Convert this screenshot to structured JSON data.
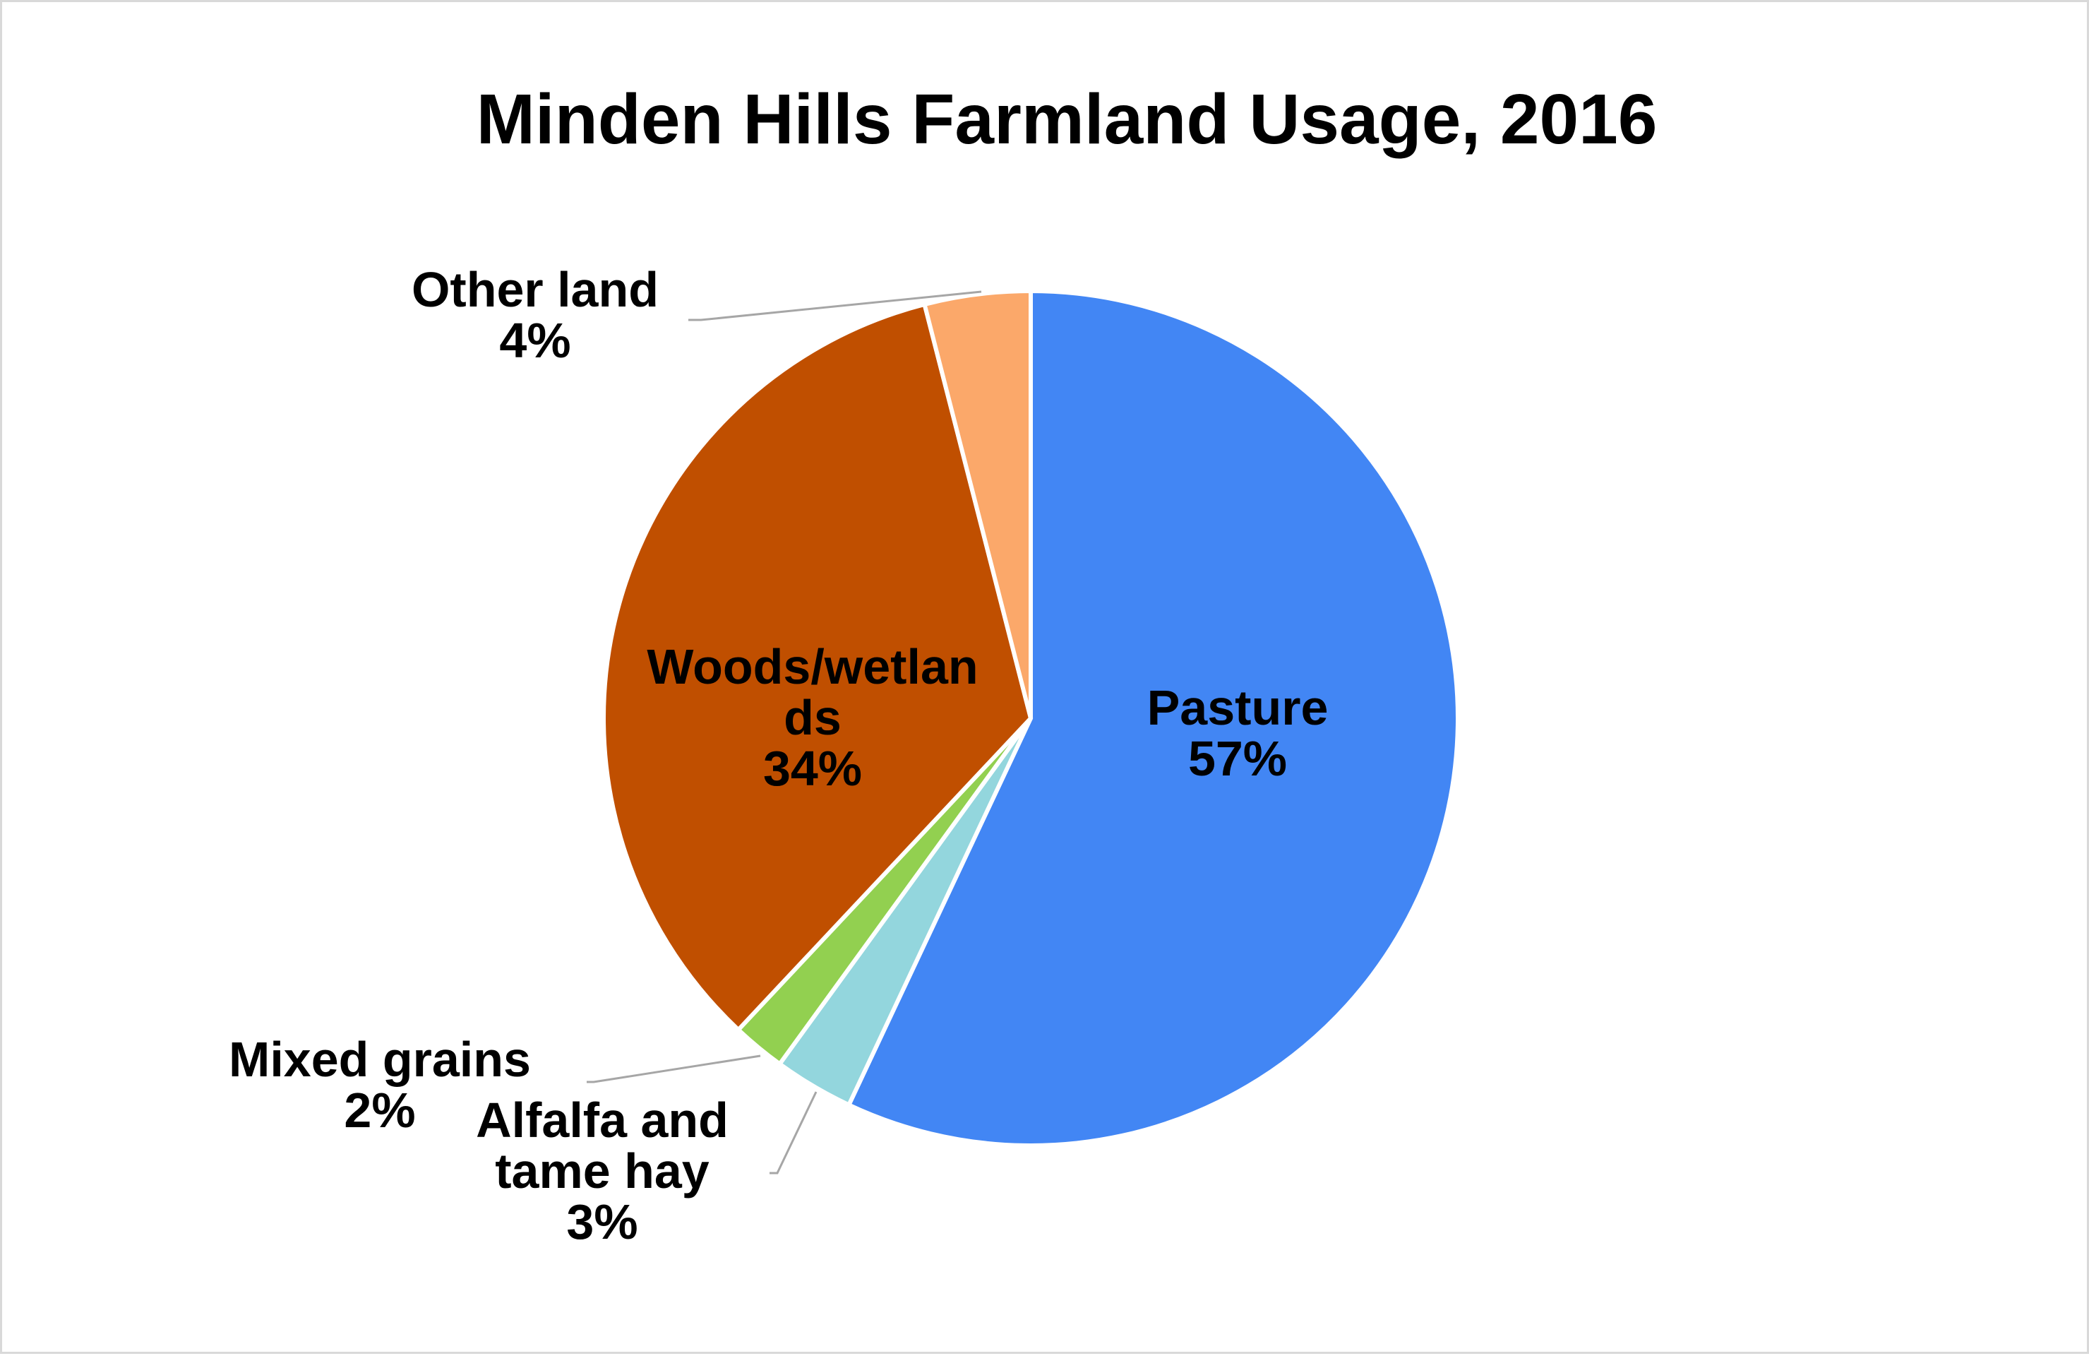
{
  "chart_data": {
    "type": "pie",
    "title": "Minden Hills Farmland Usage, 2016",
    "start_angle_deg": 0,
    "direction": "clockwise",
    "slices": [
      {
        "category": "Pasture",
        "value": 57,
        "display": "57%",
        "label_lines": [
          "Pasture",
          "57%"
        ],
        "color": "#4286F4",
        "label_position": "inside"
      },
      {
        "category": "Alfalfa and tame hay",
        "value": 3,
        "display": "3%",
        "label_lines": [
          "Alfalfa and",
          "tame hay",
          "3%"
        ],
        "color": "#93D6DD",
        "label_position": "outside-bottom"
      },
      {
        "category": "Mixed grains",
        "value": 2,
        "display": "2%",
        "label_lines": [
          "Mixed grains",
          "2%"
        ],
        "color": "#92D050",
        "label_position": "outside-left"
      },
      {
        "category": "Woods/wetlands",
        "value": 34,
        "display": "34%",
        "label_lines": [
          "Woods/wetlan",
          "ds",
          "34%"
        ],
        "color": "#C04F00",
        "label_position": "inside"
      },
      {
        "category": "Other land",
        "value": 4,
        "display": "4%",
        "label_lines": [
          "Other land",
          "4%"
        ],
        "color": "#FBA86A",
        "label_position": "outside-top-left"
      }
    ],
    "legend": "none",
    "slice_border_color": "#FFFFFF",
    "leader_line_color": "#A6A6A6"
  }
}
